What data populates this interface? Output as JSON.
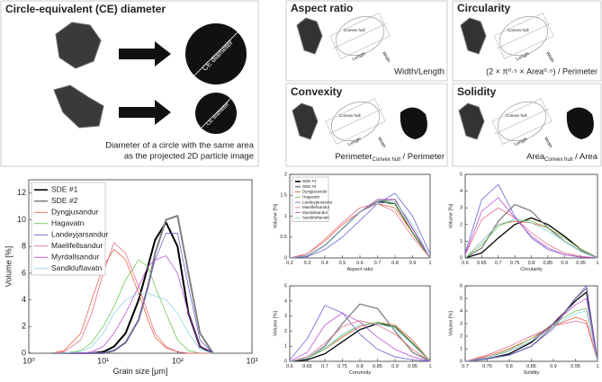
{
  "panels": {
    "ce": {
      "title": "Circle-equivalent (CE) diameter",
      "label": "CE diameter",
      "caption": [
        "Diameter of a circle with the same area",
        "as the projected 2D particle image"
      ]
    },
    "aspect": {
      "title": "Aspect ratio",
      "formula": "Width/Length",
      "labels": [
        "Convex hull",
        "Length",
        "Width"
      ]
    },
    "circularity": {
      "title": "Circularity",
      "formula": "(2 × π⁰·⁵ × Area⁰·⁵) / Perimeter",
      "labels": [
        "Convex hull",
        "Length",
        "Width"
      ]
    },
    "convexity": {
      "title": "Convexity",
      "formula": [
        "Perimeter",
        "Convex hull",
        " / Perimeter"
      ],
      "labels": [
        "Convex hull",
        "Length",
        "Width"
      ]
    },
    "solidity": {
      "title": "Solidity",
      "formula": [
        "Area",
        "Convex hull",
        " / Area"
      ],
      "labels": [
        "Convex hull",
        "Length",
        "Width"
      ]
    }
  },
  "chart_data": [
    {
      "type": "line",
      "xscale": "log",
      "xlabel": "Grain size [μm]",
      "ylabel": "Volume [%]",
      "legend": "upper left",
      "x": [
        2,
        3,
        5,
        7,
        10,
        14,
        20,
        30,
        40,
        50,
        70,
        100,
        140,
        200,
        300
      ],
      "xlim": [
        1,
        1000
      ],
      "xticks": [
        {
          "value": 1,
          "label": "10⁰"
        },
        {
          "value": 10,
          "label": "10¹"
        },
        {
          "value": 100,
          "label": "10²"
        },
        {
          "value": 1000,
          "label": "10³"
        }
      ],
      "ylim": [
        0,
        13
      ],
      "yticks": [
        0,
        2,
        4,
        6,
        8,
        10,
        12
      ],
      "series": [
        {
          "name": "SDE #1",
          "color": "#000000",
          "values": [
            0,
            0,
            0,
            0,
            0.1,
            0.5,
            1.5,
            4,
            6.5,
            8.5,
            9.8,
            8,
            3,
            0.5,
            0
          ]
        },
        {
          "name": "SDE #2",
          "color": "#808080",
          "values": [
            0,
            0,
            0,
            0,
            0,
            0.2,
            0.8,
            2.5,
            5,
            7.5,
            10,
            10.3,
            6,
            1.5,
            0
          ]
        },
        {
          "name": "Dyngjusandur",
          "color": "#e8502a",
          "values": [
            0,
            0.2,
            1.5,
            4,
            6.5,
            7.8,
            7,
            4.5,
            2.5,
            1.2,
            0.4,
            0.1,
            0,
            0,
            0
          ]
        },
        {
          "name": "Hagavatn",
          "color": "#5cc040",
          "values": [
            0,
            0,
            0.2,
            0.8,
            2,
            3.5,
            5.5,
            7,
            6.5,
            5,
            3,
            1,
            0.2,
            0,
            0
          ]
        },
        {
          "name": "Landeyjarsandur",
          "color": "#5a4fcf",
          "values": [
            0,
            0,
            0,
            0,
            0,
            0.2,
            0.8,
            2.5,
            5,
            7,
            9,
            9,
            5,
            1,
            0
          ]
        },
        {
          "name": "Maelifellsandur",
          "color": "#e0607a",
          "values": [
            0,
            0.1,
            1,
            3,
            6,
            8.3,
            7.5,
            5,
            3,
            1.5,
            0.5,
            0.1,
            0,
            0,
            0
          ]
        },
        {
          "name": "Myrdallsandur",
          "color": "#b040d0",
          "values": [
            0,
            0,
            0,
            0.1,
            0.5,
            1.5,
            3,
            5,
            6.5,
            7,
            7.3,
            6,
            3,
            0.5,
            0
          ]
        },
        {
          "name": "Sandkluftavatn",
          "color": "#80d0e0",
          "values": [
            0,
            0,
            0.1,
            0.5,
            1.5,
            3,
            4,
            4.5,
            4.5,
            4.3,
            4,
            3,
            1.5,
            0.3,
            0
          ]
        }
      ]
    },
    {
      "type": "line",
      "xlabel": "Aspect ratio",
      "ylabel": "Volume [%]",
      "legend": "upper left",
      "x": [
        0.2,
        0.3,
        0.4,
        0.5,
        0.6,
        0.7,
        0.8,
        0.9,
        1
      ],
      "xlim": [
        0.2,
        1
      ],
      "xticks": [
        0.2,
        0.3,
        0.4,
        0.5,
        0.6,
        0.7,
        0.8,
        0.9,
        1
      ],
      "ylim": [
        0,
        2
      ],
      "yticks": [
        0,
        0.5,
        1,
        1.5,
        2
      ],
      "series": [
        {
          "name": "SDE #1",
          "color": "#000000",
          "values": [
            0,
            0.05,
            0.3,
            0.7,
            1.1,
            1.35,
            1.3,
            0.6,
            0
          ]
        },
        {
          "name": "SDE #2",
          "color": "#808080",
          "values": [
            0,
            0.05,
            0.3,
            0.7,
            1.1,
            1.35,
            1.4,
            0.7,
            0
          ]
        },
        {
          "name": "Dyngjusandur",
          "color": "#e8502a",
          "values": [
            0,
            0.1,
            0.4,
            0.8,
            1.1,
            1.3,
            1.2,
            0.6,
            0
          ]
        },
        {
          "name": "Hagavatn",
          "color": "#5cc040",
          "values": [
            0,
            0.05,
            0.3,
            0.7,
            1.1,
            1.4,
            1.3,
            0.6,
            0
          ]
        },
        {
          "name": "Landeyjarsandur",
          "color": "#5a4fcf",
          "values": [
            0,
            0.03,
            0.2,
            0.5,
            0.9,
            1.3,
            1.55,
            1.0,
            0.1
          ]
        },
        {
          "name": "Maelifellsandur",
          "color": "#e0607a",
          "values": [
            0,
            0.1,
            0.45,
            0.85,
            1.2,
            1.3,
            1.1,
            0.5,
            0
          ]
        },
        {
          "name": "Myrdallsandur",
          "color": "#b040d0",
          "values": [
            0,
            0.05,
            0.3,
            0.7,
            1.1,
            1.4,
            1.4,
            0.7,
            0
          ]
        },
        {
          "name": "Sandkluftavatn",
          "color": "#80d0e0",
          "values": [
            0,
            0.05,
            0.3,
            0.7,
            1.1,
            1.3,
            1.35,
            0.8,
            0
          ]
        }
      ]
    },
    {
      "type": "line",
      "xlabel": "Circularity",
      "ylabel": "Volume [%]",
      "x": [
        0.6,
        0.65,
        0.7,
        0.75,
        0.8,
        0.85,
        0.9,
        0.95,
        1
      ],
      "xlim": [
        0.6,
        1
      ],
      "xticks": [
        0.6,
        0.65,
        0.7,
        0.75,
        0.8,
        0.85,
        0.9,
        0.95,
        1
      ],
      "ylim": [
        0,
        5
      ],
      "yticks": [
        0,
        1,
        2,
        3,
        4,
        5
      ],
      "series": [
        {
          "color": "#000000",
          "values": [
            0,
            0.3,
            1.2,
            2.0,
            2.4,
            2.0,
            1.3,
            0.5,
            0
          ]
        },
        {
          "color": "#808080",
          "values": [
            0,
            0.6,
            2.2,
            3.2,
            2.8,
            1.8,
            1.0,
            0.4,
            0
          ]
        },
        {
          "color": "#e8502a",
          "values": [
            0,
            1.0,
            2.0,
            2.2,
            2.1,
            1.8,
            1.2,
            0.5,
            0
          ]
        },
        {
          "color": "#5cc040",
          "values": [
            0,
            0.8,
            1.9,
            2.3,
            2.2,
            1.8,
            1.2,
            0.5,
            0
          ]
        },
        {
          "color": "#5a4fcf",
          "values": [
            0.3,
            3.5,
            4.4,
            2.5,
            1.2,
            0.5,
            0.2,
            0.05,
            0
          ]
        },
        {
          "color": "#e0607a",
          "values": [
            0.2,
            2.3,
            3.0,
            2.4,
            1.5,
            0.8,
            0.3,
            0.1,
            0
          ]
        },
        {
          "color": "#b040d0",
          "values": [
            0.2,
            2.8,
            3.6,
            2.4,
            1.3,
            0.6,
            0.2,
            0.05,
            0
          ]
        },
        {
          "color": "#80d0e0",
          "values": [
            0,
            1.0,
            2.0,
            2.3,
            2.1,
            1.6,
            1.0,
            0.4,
            0
          ]
        }
      ]
    },
    {
      "type": "line",
      "xlabel": "Convexity",
      "ylabel": "Volume [%]",
      "x": [
        0.6,
        0.65,
        0.7,
        0.75,
        0.8,
        0.85,
        0.9,
        0.95,
        1
      ],
      "xlim": [
        0.6,
        1
      ],
      "xticks": [
        0.6,
        0.65,
        0.7,
        0.75,
        0.8,
        0.85,
        0.9,
        0.95,
        1
      ],
      "ylim": [
        0,
        5
      ],
      "yticks": [
        0,
        1,
        2,
        3,
        4,
        5
      ],
      "series": [
        {
          "color": "#000000",
          "values": [
            0,
            0.1,
            0.5,
            1.3,
            2.1,
            2.5,
            2.3,
            1.2,
            0
          ]
        },
        {
          "color": "#808080",
          "values": [
            0,
            0.2,
            1.0,
            2.5,
            3.8,
            3.5,
            2.0,
            0.6,
            0
          ]
        },
        {
          "color": "#e8502a",
          "values": [
            0,
            0.2,
            0.8,
            1.6,
            2.3,
            2.6,
            2.4,
            1.4,
            0
          ]
        },
        {
          "color": "#5cc040",
          "values": [
            0,
            0.2,
            0.8,
            1.7,
            2.4,
            2.6,
            2.3,
            1.2,
            0
          ]
        },
        {
          "color": "#5a4fcf",
          "values": [
            0.1,
            1.5,
            3.7,
            3.2,
            1.8,
            0.8,
            0.3,
            0.1,
            0
          ]
        },
        {
          "color": "#e0607a",
          "values": [
            0,
            0.3,
            1.2,
            2.3,
            2.7,
            2.4,
            1.8,
            0.8,
            0
          ]
        },
        {
          "color": "#b040d0",
          "values": [
            0,
            0.6,
            2.4,
            3.2,
            2.6,
            1.6,
            0.8,
            0.3,
            0
          ]
        },
        {
          "color": "#80d0e0",
          "values": [
            0,
            0.2,
            0.9,
            1.8,
            2.4,
            2.5,
            2.2,
            1.1,
            0
          ]
        }
      ]
    },
    {
      "type": "line",
      "xlabel": "Solidity",
      "ylabel": "Volume [%]",
      "x": [
        0.7,
        0.75,
        0.8,
        0.85,
        0.9,
        0.95,
        0.975,
        1
      ],
      "xlim": [
        0.7,
        1
      ],
      "xticks": [
        0.7,
        0.75,
        0.8,
        0.85,
        0.9,
        0.95,
        1
      ],
      "ylim": [
        0,
        6
      ],
      "yticks": [
        0,
        1,
        2,
        3,
        4,
        5,
        6
      ],
      "series": [
        {
          "color": "#000000",
          "values": [
            0,
            0.2,
            0.6,
            1.5,
            3.0,
            4.8,
            5.5,
            0
          ]
        },
        {
          "color": "#808080",
          "values": [
            0,
            0.2,
            0.5,
            1.2,
            2.8,
            5.0,
            5.8,
            0
          ]
        },
        {
          "color": "#e8502a",
          "values": [
            0,
            0.4,
            1.0,
            1.8,
            2.8,
            3.5,
            3.2,
            0
          ]
        },
        {
          "color": "#5cc040",
          "values": [
            0,
            0.3,
            0.9,
            1.8,
            3.0,
            4.0,
            4.2,
            0
          ]
        },
        {
          "color": "#5a4fcf",
          "values": [
            0,
            0.2,
            0.5,
            1.2,
            2.6,
            5.0,
            6,
            0
          ]
        },
        {
          "color": "#e0607a",
          "values": [
            0,
            0.5,
            1.2,
            2.0,
            2.8,
            3.2,
            3.0,
            0
          ]
        },
        {
          "color": "#b040d0",
          "values": [
            0,
            0.3,
            0.8,
            1.6,
            3.0,
            4.5,
            5.0,
            0
          ]
        },
        {
          "color": "#80d0e0",
          "values": [
            0,
            0.3,
            0.8,
            1.6,
            2.8,
            3.8,
            4.0,
            0
          ]
        }
      ]
    }
  ]
}
